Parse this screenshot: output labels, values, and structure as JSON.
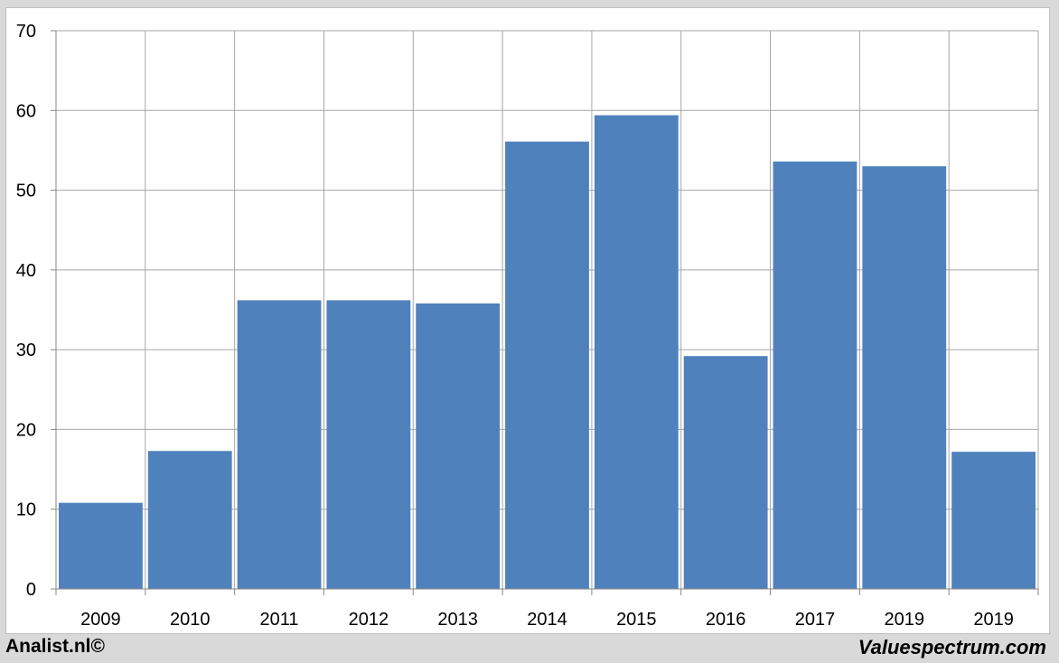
{
  "chart_data": {
    "type": "bar",
    "categories": [
      "2009",
      "2010",
      "2011",
      "2012",
      "2013",
      "2014",
      "2015",
      "2016",
      "2017",
      "2019",
      "2019"
    ],
    "values": [
      10.8,
      17.3,
      36.2,
      36.2,
      35.8,
      56.1,
      59.4,
      29.2,
      53.6,
      53.0,
      17.2
    ],
    "title": "",
    "xlabel": "",
    "ylabel": "",
    "ylim": [
      0,
      70
    ],
    "yticks": [
      0,
      10,
      20,
      30,
      40,
      50,
      60,
      70
    ],
    "grid": true,
    "bar_color": "#4f81bd"
  },
  "footer": {
    "left": "Analist.nl©",
    "right": "Valuespectrum.com"
  }
}
